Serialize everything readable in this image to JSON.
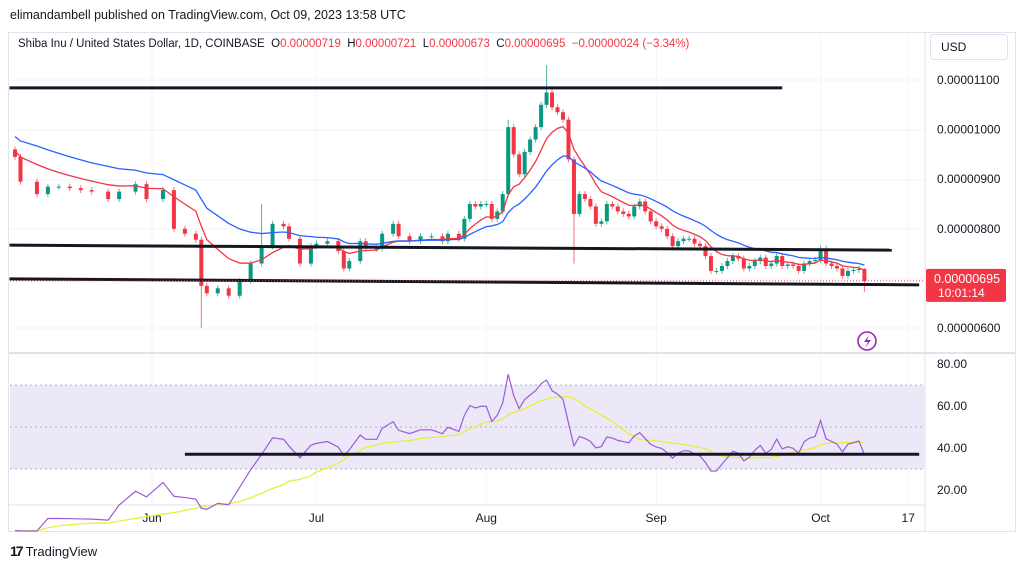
{
  "header": {
    "published": "elimandambell published on TradingView.com, Oct 09, 2023 13:58 UTC",
    "symbol": "Shiba Inu / United States Dollar, 1D, COINBASE",
    "o_label": "O",
    "o": "0.00000719",
    "h_label": "H",
    "h": "0.00000721",
    "l_label": "L",
    "l": "0.00000673",
    "c_label": "C",
    "c": "0.00000695",
    "change": "−0.00000024 (−3.34%)"
  },
  "currency_button": "USD",
  "price_badge": {
    "price": "0.00000695",
    "countdown": "10:01:14",
    "color": "#f23645"
  },
  "footer": {
    "logo_text": "TradingView"
  },
  "colors": {
    "up": "#089981",
    "down": "#f23645",
    "ma_fast": "#f23645",
    "ma_slow": "#2962ff",
    "rsi": "#9c5ad9",
    "rsi_ma": "#e5f03a",
    "rsi_band": "#ede8f7",
    "trendline": "#131722"
  },
  "icons": {
    "alert": "lightning-icon"
  },
  "chart_data": [
    {
      "type": "candlestick",
      "title": "",
      "y_ticks": [
        "0.00001100",
        "0.00001000",
        "0.00000900",
        "0.00000800",
        "0.00000600"
      ],
      "x_ticks": [
        {
          "label": "Jun",
          "date": "2023-06-01"
        },
        {
          "label": "Jul",
          "date": "2023-07-01"
        },
        {
          "label": "Aug",
          "date": "2023-08-01"
        },
        {
          "label": "Sep",
          "date": "2023-09-01"
        },
        {
          "label": "Oct",
          "date": "2023-10-01"
        },
        {
          "label": "17",
          "date": "2023-10-17"
        }
      ],
      "ylim": [
        5.3e-06,
        1.16e-05
      ],
      "first_open": 9.6e-06,
      "dates": [
        "2023-05-07",
        "2023-05-08",
        "2023-05-11",
        "2023-05-13",
        "2023-05-15",
        "2023-05-17",
        "2023-05-19",
        "2023-05-21",
        "2023-05-24",
        "2023-05-26",
        "2023-05-29",
        "2023-05-31",
        "2023-06-03",
        "2023-06-05",
        "2023-06-07",
        "2023-06-09",
        "2023-06-10",
        "2023-06-11",
        "2023-06-13",
        "2023-06-15",
        "2023-06-17",
        "2023-06-19",
        "2023-06-21",
        "2023-06-23",
        "2023-06-25",
        "2023-06-26",
        "2023-06-28",
        "2023-06-30",
        "2023-07-01",
        "2023-07-03",
        "2023-07-05",
        "2023-07-06",
        "2023-07-07",
        "2023-07-09",
        "2023-07-10",
        "2023-07-12",
        "2023-07-13",
        "2023-07-15",
        "2023-07-16",
        "2023-07-18",
        "2023-07-20",
        "2023-07-22",
        "2023-07-24",
        "2023-07-25",
        "2023-07-27",
        "2023-07-28",
        "2023-07-29",
        "2023-07-30",
        "2023-07-31",
        "2023-08-01",
        "2023-08-02",
        "2023-08-03",
        "2023-08-04",
        "2023-08-05",
        "2023-08-06",
        "2023-08-07",
        "2023-08-08",
        "2023-08-09",
        "2023-08-10",
        "2023-08-11",
        "2023-08-12",
        "2023-08-13",
        "2023-08-14",
        "2023-08-15",
        "2023-08-16",
        "2023-08-17",
        "2023-08-18",
        "2023-08-19",
        "2023-08-20",
        "2023-08-21",
        "2023-08-22",
        "2023-08-23",
        "2023-08-24",
        "2023-08-25",
        "2023-08-26",
        "2023-08-27",
        "2023-08-28",
        "2023-08-29",
        "2023-08-30",
        "2023-08-31",
        "2023-09-01",
        "2023-09-02",
        "2023-09-03",
        "2023-09-04",
        "2023-09-05",
        "2023-09-06",
        "2023-09-07",
        "2023-09-08",
        "2023-09-09",
        "2023-09-10",
        "2023-09-11",
        "2023-09-12",
        "2023-09-13",
        "2023-09-14",
        "2023-09-15",
        "2023-09-16",
        "2023-09-17",
        "2023-09-18",
        "2023-09-19",
        "2023-09-20",
        "2023-09-21",
        "2023-09-22",
        "2023-09-23",
        "2023-09-24",
        "2023-09-25",
        "2023-09-26",
        "2023-09-27",
        "2023-09-28",
        "2023-09-29",
        "2023-09-30",
        "2023-10-01",
        "2023-10-02",
        "2023-10-03",
        "2023-10-04",
        "2023-10-05",
        "2023-10-06",
        "2023-10-07",
        "2023-10-08",
        "2023-10-09"
      ],
      "close": [
        9.45e-06,
        8.95e-06,
        8.7e-06,
        8.85e-06,
        8.85e-06,
        8.82e-06,
        8.78e-06,
        8.75e-06,
        8.6e-06,
        8.75e-06,
        8.9e-06,
        8.6e-06,
        8.78e-06,
        8e-06,
        7.9e-06,
        7.78e-06,
        6.85e-06,
        6.7e-06,
        6.8e-06,
        6.65e-06,
        6.95e-06,
        7.3e-06,
        7.65e-06,
        8.1e-06,
        8.05e-06,
        7.8e-06,
        7.3e-06,
        7.65e-06,
        7.7e-06,
        7.75e-06,
        7.55e-06,
        7.2e-06,
        7.35e-06,
        7.75e-06,
        7.6e-06,
        7.6e-06,
        7.9e-06,
        8.1e-06,
        7.85e-06,
        7.75e-06,
        7.85e-06,
        7.85e-06,
        7.75e-06,
        7.9e-06,
        7.8e-06,
        8.2e-06,
        8.5e-06,
        8.45e-06,
        8.5e-06,
        8.5e-06,
        8.2e-06,
        8.35e-06,
        8.7e-06,
        1.005e-05,
        9.5e-06,
        9.1e-06,
        9.55e-06,
        9.8e-06,
        1.005e-05,
        1.05e-05,
        1.075e-05,
        1.045e-05,
        1.035e-05,
        1.02e-05,
        9.4e-06,
        8.3e-06,
        8.7e-06,
        8.6e-06,
        8.45e-06,
        8.1e-06,
        8.15e-06,
        8.5e-06,
        8.45e-06,
        8.35e-06,
        8.3e-06,
        8.25e-06,
        8.45e-06,
        8.55e-06,
        8.35e-06,
        8.15e-06,
        8.05e-06,
        8e-06,
        7.85e-06,
        7.65e-06,
        7.75e-06,
        7.8e-06,
        7.8e-06,
        7.7e-06,
        7.65e-06,
        7.45e-06,
        7.15e-06,
        7.15e-06,
        7.25e-06,
        7.35e-06,
        7.45e-06,
        7.4e-06,
        7.2e-06,
        7.25e-06,
        7.35e-06,
        7.42e-06,
        7.25e-06,
        7.3e-06,
        7.45e-06,
        7.25e-06,
        7.28e-06,
        7.25e-06,
        7.15e-06,
        7.3e-06,
        7.35e-06,
        7.37e-06,
        7.6e-06,
        7.3e-06,
        7.25e-06,
        7.2e-06,
        7.05e-06,
        7.15e-06,
        7.17e-06,
        7.19e-06,
        6.95e-06
      ],
      "notable_highs": {
        "2023-06-21": 8.5e-06,
        "2023-08-05": 1.02e-05,
        "2023-08-12": 1.13e-05,
        "2023-10-09": 7.21e-06
      },
      "notable_lows": {
        "2023-06-10": 6e-06,
        "2023-08-17": 7.3e-06,
        "2023-10-09": 6.73e-06
      },
      "trendlines": [
        {
          "from": {
            "date": "2023-05-06",
            "price": 1.084e-05
          },
          "to": {
            "date": "2023-09-24",
            "price": 1.084e-05
          }
        },
        {
          "from": {
            "date": "2023-05-06",
            "price": 7.67e-06
          },
          "to": {
            "date": "2023-10-14",
            "price": 7.57e-06
          }
        },
        {
          "from": {
            "date": "2023-05-06",
            "price": 6.99e-06
          },
          "to": {
            "date": "2023-10-19",
            "price": 6.87e-06
          }
        }
      ]
    },
    {
      "type": "line",
      "title": "",
      "y_ticks": [
        "80.00",
        "60.00",
        "40.00",
        "20.00"
      ],
      "ylim": [
        12,
        84
      ],
      "bands": {
        "upper": 70,
        "middle": 50,
        "lower": 30
      },
      "trendline": {
        "from": {
          "date": "2023-06-07",
          "value": 37
        },
        "to": {
          "date": "2023-10-19",
          "value": 37
        }
      }
    }
  ]
}
